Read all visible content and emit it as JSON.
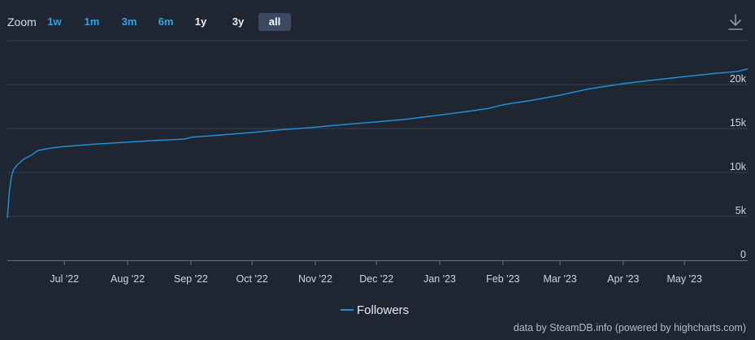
{
  "toolbar": {
    "zoom_label": "Zoom",
    "buttons": [
      {
        "label": "1w",
        "active": false
      },
      {
        "label": "1m",
        "active": false
      },
      {
        "label": "3m",
        "active": false
      },
      {
        "label": "6m",
        "active": false
      },
      {
        "label": "1y",
        "active": false
      },
      {
        "label": "3y",
        "active": false
      },
      {
        "label": "all",
        "active": true
      }
    ],
    "download_icon": "download-icon"
  },
  "footer": {
    "credit": "data by SteamDB.info (powered by highcharts.com)"
  },
  "colors": {
    "background": "#1f2632",
    "line": "#1f8fd6",
    "grid": "#3a4352",
    "axis_text": "#cfd5de",
    "button_blue": "#2fa4e7"
  },
  "chart_data": {
    "type": "line",
    "title": "",
    "xlabel": "",
    "ylabel": "",
    "x_range": [
      "2022-06-03",
      "2023-06-01"
    ],
    "ylim": [
      0,
      25000
    ],
    "y_ticks": [
      0,
      5000,
      10000,
      15000,
      20000
    ],
    "y_tick_labels": [
      "0",
      "5k",
      "10k",
      "15k",
      "20k"
    ],
    "x_ticks": [
      "2022-07-01",
      "2022-08-01",
      "2022-09-01",
      "2022-10-01",
      "2022-11-01",
      "2022-12-01",
      "2023-01-01",
      "2023-02-01",
      "2023-03-01",
      "2023-04-01",
      "2023-05-01"
    ],
    "x_tick_labels": [
      "Jul '22",
      "Aug '22",
      "Sep '22",
      "Oct '22",
      "Nov '22",
      "Dec '22",
      "Jan '23",
      "Feb '23",
      "Mar '23",
      "Apr '23",
      "May '23"
    ],
    "grid": true,
    "legend": "bottom-center",
    "series": [
      {
        "name": "Followers",
        "points": [
          [
            "2022-06-03",
            4800
          ],
          [
            "2022-06-04",
            7800
          ],
          [
            "2022-06-05",
            9500
          ],
          [
            "2022-06-06",
            10300
          ],
          [
            "2022-06-08",
            10900
          ],
          [
            "2022-06-11",
            11500
          ],
          [
            "2022-06-15",
            12000
          ],
          [
            "2022-06-18",
            12500
          ],
          [
            "2022-06-25",
            12800
          ],
          [
            "2022-07-01",
            12950
          ],
          [
            "2022-07-15",
            13200
          ],
          [
            "2022-08-01",
            13450
          ],
          [
            "2022-08-15",
            13650
          ],
          [
            "2022-08-29",
            13800
          ],
          [
            "2022-09-01",
            14000
          ],
          [
            "2022-09-15",
            14250
          ],
          [
            "2022-10-01",
            14550
          ],
          [
            "2022-10-15",
            14850
          ],
          [
            "2022-11-01",
            15150
          ],
          [
            "2022-11-15",
            15450
          ],
          [
            "2022-12-01",
            15750
          ],
          [
            "2022-12-15",
            16050
          ],
          [
            "2022-12-31",
            16500
          ],
          [
            "2023-01-15",
            16950
          ],
          [
            "2023-01-25",
            17300
          ],
          [
            "2023-02-01",
            17700
          ],
          [
            "2023-02-15",
            18200
          ],
          [
            "2023-03-01",
            18800
          ],
          [
            "2023-03-15",
            19500
          ],
          [
            "2023-04-01",
            20100
          ],
          [
            "2023-04-15",
            20500
          ],
          [
            "2023-05-01",
            20900
          ],
          [
            "2023-05-15",
            21250
          ],
          [
            "2023-05-27",
            21500
          ],
          [
            "2023-06-01",
            21800
          ]
        ]
      }
    ]
  }
}
